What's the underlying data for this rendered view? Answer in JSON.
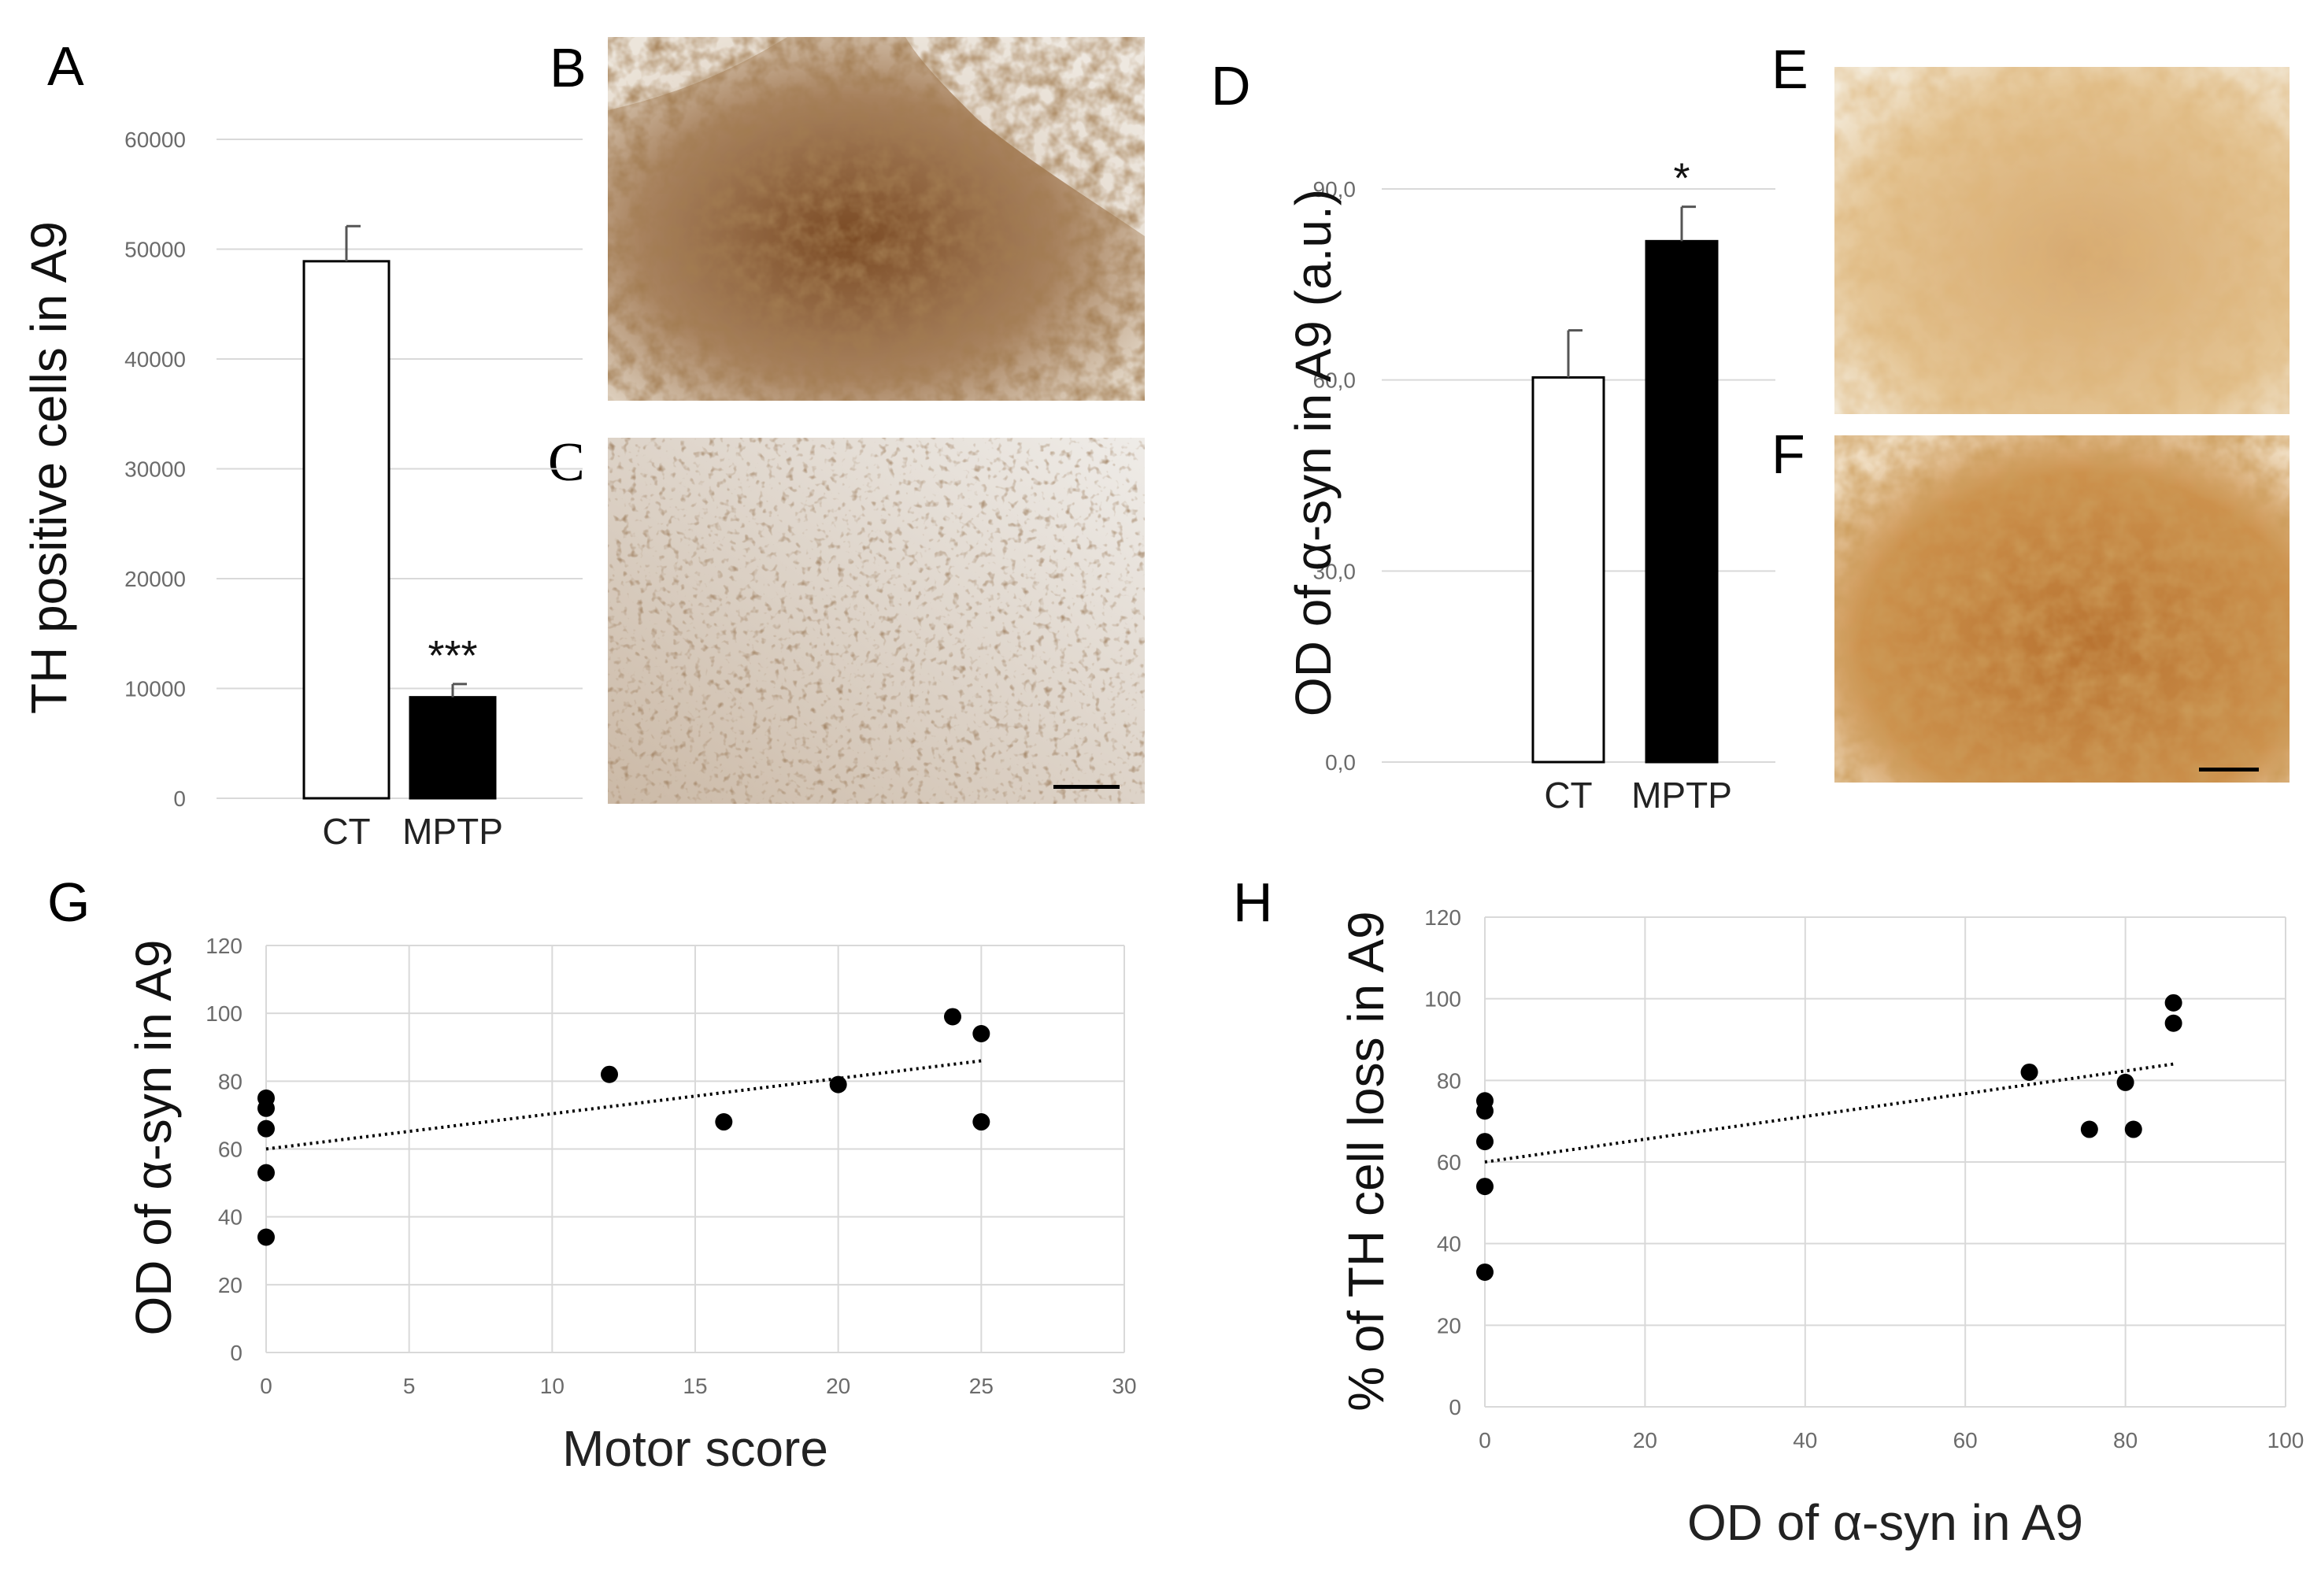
{
  "figure_title": "",
  "colors": {
    "ct_bar": "#ffffff",
    "mptp_bar": "#000000",
    "grid": "#d9d9d9",
    "tick_text": "#6b6b6b",
    "stain": "#8b5a2b"
  },
  "panels": {
    "A": {
      "letter": "A"
    },
    "B": {
      "letter": "B"
    },
    "C": {
      "letter": "C"
    },
    "D": {
      "letter": "D"
    },
    "E": {
      "letter": "E"
    },
    "F": {
      "letter": "F"
    },
    "G": {
      "letter": "G"
    },
    "H": {
      "letter": "H"
    }
  },
  "micrographs": {
    "B": {
      "description_icon": "micrograph-th-control-icon"
    },
    "C": {
      "description_icon": "micrograph-th-mptp-icon"
    },
    "E": {
      "description_icon": "micrograph-asyn-control-icon"
    },
    "F": {
      "description_icon": "micrograph-asyn-mptp-icon"
    }
  },
  "chart_data": [
    {
      "id": "A",
      "type": "bar",
      "title": "",
      "ylabel": "TH positive cells in A9",
      "xlabel": "",
      "categories": [
        "CT",
        "MPTP"
      ],
      "values": [
        48900,
        9200
      ],
      "errors": [
        3200,
        1200
      ],
      "significance": [
        "",
        "***"
      ],
      "ylim": [
        0,
        60000
      ],
      "yticks": [
        0,
        10000,
        20000,
        30000,
        40000,
        50000,
        60000
      ],
      "ytick_labels": [
        "0",
        "10000",
        "20000",
        "30000",
        "40000",
        "50000",
        "60000"
      ],
      "grid": true
    },
    {
      "id": "D",
      "type": "bar",
      "title": "",
      "ylabel": "OD of α-syn in A9 (a.u.)",
      "xlabel": "",
      "categories": [
        "CT",
        "MPTP"
      ],
      "values": [
        60.4,
        81.8
      ],
      "errors": [
        7.4,
        5.4
      ],
      "significance": [
        "",
        "*"
      ],
      "ylim": [
        0,
        90
      ],
      "yticks": [
        0,
        30,
        60,
        90
      ],
      "ytick_labels": [
        "0,0",
        "30,0",
        "60,0",
        "90,0"
      ],
      "grid": true
    },
    {
      "id": "G",
      "type": "scatter",
      "title": "",
      "xlabel": "Motor score",
      "ylabel": "OD of α-syn in A9",
      "x": [
        0,
        0,
        0,
        0,
        0,
        12,
        16,
        20,
        24,
        25,
        25
      ],
      "y": [
        75,
        72,
        66,
        53,
        34,
        82,
        68,
        79,
        99,
        94,
        68
      ],
      "trendline": {
        "x": [
          0,
          25
        ],
        "y": [
          60,
          86
        ]
      },
      "xlim": [
        0,
        30
      ],
      "ylim": [
        0,
        120
      ],
      "xticks": [
        0,
        5,
        10,
        15,
        20,
        25,
        30
      ],
      "xtick_labels": [
        "0",
        "5",
        "10",
        "15",
        "20",
        "25",
        "30"
      ],
      "yticks": [
        0,
        20,
        40,
        60,
        80,
        100,
        120
      ],
      "ytick_labels": [
        "0",
        "20",
        "40",
        "60",
        "80",
        "100",
        "120"
      ],
      "grid": true
    },
    {
      "id": "H",
      "type": "scatter",
      "title": "",
      "xlabel": "OD of α-syn in A9",
      "ylabel": "% of TH cell loss in A9",
      "x": [
        0,
        0,
        0,
        0,
        0,
        68,
        75.5,
        80,
        81,
        86,
        86
      ],
      "y": [
        75,
        72.5,
        65,
        54,
        33,
        82,
        68,
        79.5,
        68,
        99,
        94
      ],
      "trendline": {
        "x": [
          0,
          86
        ],
        "y": [
          60,
          84
        ]
      },
      "xlim": [
        0,
        100
      ],
      "ylim": [
        0,
        120
      ],
      "xticks": [
        0,
        20,
        40,
        60,
        80,
        100
      ],
      "xtick_labels": [
        "0",
        "20",
        "40",
        "60",
        "80",
        "100"
      ],
      "yticks": [
        0,
        20,
        40,
        60,
        80,
        100,
        120
      ],
      "ytick_labels": [
        "0",
        "20",
        "40",
        "60",
        "80",
        "100",
        "120"
      ],
      "grid": true
    }
  ]
}
